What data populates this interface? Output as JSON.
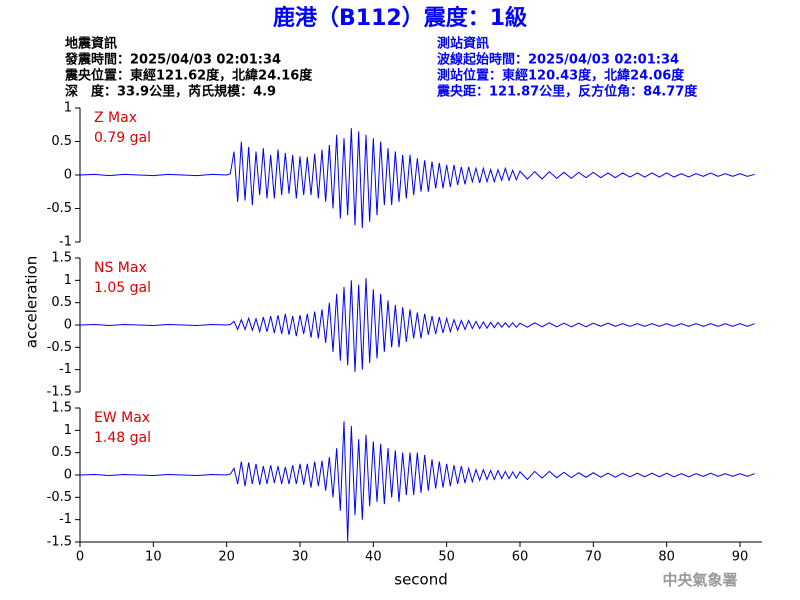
{
  "header": {
    "title": "鹿港（B112）震度：1級",
    "left": [
      "地震資訊",
      "發震時間：2025/04/03 02:01:34",
      "震央位置：東經121.62度，北緯24.16度",
      "深　度：33.9公里，芮氏規模：4.9"
    ],
    "right": [
      "測站資訊",
      "波線起始時間：2025/04/03 02:01:34",
      "測站位置：東經120.43度，北緯24.06度",
      "震央距：121.87公里，反方位角：84.77度"
    ]
  },
  "footer": {
    "agency": "中央氣象署"
  },
  "chart_data": {
    "type": "line",
    "xlabel": "second",
    "ylabel": "acceleration",
    "color": "#0000ff",
    "xlim": [
      0,
      93
    ],
    "xticks": [
      0,
      10,
      20,
      30,
      40,
      50,
      60,
      70,
      80,
      90
    ],
    "x": [
      0,
      2,
      4,
      6,
      8,
      10,
      12,
      14,
      16,
      18,
      20,
      20.5,
      21,
      21.5,
      22,
      22.5,
      23,
      23.5,
      24,
      24.5,
      25,
      25.5,
      26,
      26.5,
      27,
      27.5,
      28,
      28.5,
      29,
      29.5,
      30,
      30.5,
      31,
      31.5,
      32,
      32.5,
      33,
      33.5,
      34,
      34.5,
      35,
      35.5,
      36,
      36.5,
      37,
      37.5,
      38,
      38.5,
      39,
      39.5,
      40,
      40.5,
      41,
      41.5,
      42,
      42.5,
      43,
      43.5,
      44,
      44.5,
      45,
      45.5,
      46,
      46.5,
      47,
      47.5,
      48,
      48.5,
      49,
      49.5,
      50,
      50.5,
      51,
      51.5,
      52,
      52.5,
      53,
      53.5,
      54,
      54.5,
      55,
      55.5,
      56,
      56.5,
      57,
      57.5,
      58,
      58.5,
      59,
      59.5,
      60,
      61,
      62,
      63,
      64,
      65,
      66,
      67,
      68,
      69,
      70,
      71,
      72,
      73,
      74,
      75,
      76,
      77,
      78,
      79,
      80,
      81,
      82,
      83,
      84,
      85,
      86,
      87,
      88,
      89,
      90,
      91,
      92
    ],
    "panels": [
      {
        "label": "Z Max",
        "max": "0.79 gal",
        "ylim": [
          -1,
          1
        ],
        "yticks": [
          -1,
          -0.5,
          0,
          0.5,
          1
        ],
        "values": [
          0,
          0.01,
          -0.01,
          0.01,
          0,
          -0.01,
          0.01,
          0,
          -0.01,
          0.01,
          0,
          0.02,
          0.35,
          -0.4,
          0.5,
          -0.38,
          0.42,
          -0.45,
          0.35,
          -0.3,
          0.4,
          -0.35,
          0.3,
          -0.35,
          0.38,
          -0.3,
          0.33,
          -0.28,
          0.3,
          -0.35,
          0.28,
          -0.3,
          0.27,
          -0.3,
          0.32,
          -0.35,
          0.38,
          -0.4,
          0.45,
          -0.5,
          0.6,
          -0.65,
          0.55,
          -0.6,
          0.7,
          -0.75,
          0.65,
          -0.79,
          0.6,
          -0.7,
          0.55,
          -0.6,
          0.5,
          -0.45,
          0.4,
          -0.45,
          0.35,
          -0.4,
          0.3,
          -0.35,
          0.3,
          -0.3,
          0.25,
          -0.25,
          0.22,
          -0.25,
          0.2,
          -0.2,
          0.18,
          -0.2,
          0.15,
          -0.18,
          0.15,
          -0.15,
          0.12,
          -0.14,
          0.12,
          -0.1,
          0.1,
          -0.12,
          0.1,
          -0.1,
          0.08,
          -0.1,
          0.08,
          -0.08,
          0.1,
          -0.08,
          0.07,
          -0.07,
          0.06,
          -0.06,
          0.05,
          -0.06,
          0.05,
          -0.05,
          0.04,
          -0.05,
          0.04,
          -0.04,
          0.04,
          -0.04,
          0.03,
          -0.04,
          0.03,
          -0.03,
          0.03,
          -0.03,
          0.03,
          -0.03,
          0.03,
          -0.03,
          0.02,
          -0.03,
          0.02,
          -0.02,
          0.03,
          -0.02,
          0.02,
          -0.02,
          0.02,
          -0.02,
          0.01
        ]
      },
      {
        "label": "NS Max",
        "max": "1.05 gal",
        "ylim": [
          -1.5,
          1.5
        ],
        "yticks": [
          -1.5,
          -1,
          -0.5,
          0,
          0.5,
          1,
          1.5
        ],
        "values": [
          0,
          0.01,
          -0.01,
          0.01,
          0,
          -0.01,
          0.01,
          0,
          -0.01,
          0.01,
          0,
          0.01,
          0.08,
          -0.1,
          0.12,
          -0.1,
          0.15,
          -0.12,
          0.14,
          -0.15,
          0.18,
          -0.15,
          0.2,
          -0.18,
          0.22,
          -0.2,
          0.25,
          -0.22,
          0.2,
          -0.25,
          0.22,
          -0.2,
          0.25,
          -0.28,
          0.3,
          -0.3,
          0.35,
          -0.4,
          0.5,
          -0.6,
          0.7,
          -0.8,
          0.85,
          -0.9,
          1.0,
          -1.05,
          0.9,
          -1.0,
          1.05,
          -0.85,
          0.8,
          -0.75,
          0.7,
          -0.6,
          0.55,
          -0.5,
          0.45,
          -0.5,
          0.4,
          -0.38,
          0.35,
          -0.3,
          0.28,
          -0.3,
          0.25,
          -0.22,
          0.2,
          -0.2,
          0.18,
          -0.18,
          0.15,
          -0.15,
          0.12,
          -0.12,
          0.1,
          -0.1,
          0.1,
          -0.08,
          0.08,
          -0.08,
          0.07,
          -0.07,
          0.06,
          -0.06,
          0.06,
          -0.05,
          0.05,
          -0.05,
          0.05,
          -0.05,
          0.04,
          -0.05,
          0.05,
          -0.04,
          0.05,
          -0.04,
          0.04,
          -0.04,
          0.04,
          -0.04,
          0.04,
          -0.03,
          0.04,
          -0.03,
          0.03,
          -0.03,
          0.03,
          -0.03,
          0.03,
          -0.03,
          0.03,
          -0.03,
          0.03,
          -0.03,
          0.03,
          -0.03,
          0.03,
          -0.03,
          0.03,
          -0.03,
          0.03,
          -0.03,
          0.03
        ]
      },
      {
        "label": "EW Max",
        "max": "1.48 gal",
        "ylim": [
          -1.5,
          1.5
        ],
        "yticks": [
          -1.5,
          -1,
          -0.5,
          0,
          0.5,
          1,
          1.5
        ],
        "values": [
          0,
          0.01,
          -0.01,
          0.01,
          0,
          -0.01,
          0.01,
          0,
          -0.01,
          0.01,
          0,
          0.02,
          0.15,
          -0.2,
          0.3,
          -0.25,
          0.28,
          -0.2,
          0.25,
          -0.22,
          0.2,
          -0.2,
          0.22,
          -0.18,
          0.2,
          -0.2,
          0.18,
          -0.2,
          0.22,
          -0.2,
          0.25,
          -0.22,
          0.25,
          -0.28,
          0.3,
          -0.25,
          0.32,
          -0.35,
          0.4,
          -0.5,
          0.6,
          -0.8,
          1.2,
          -1.48,
          1.1,
          -0.9,
          0.8,
          -1.0,
          0.9,
          -0.7,
          0.75,
          -0.6,
          0.7,
          -0.65,
          0.6,
          -0.5,
          0.55,
          -0.6,
          0.5,
          -0.45,
          0.5,
          -0.45,
          0.5,
          -0.4,
          0.45,
          -0.35,
          0.35,
          -0.3,
          0.3,
          -0.28,
          0.25,
          -0.25,
          0.22,
          -0.2,
          0.2,
          -0.18,
          0.15,
          -0.15,
          0.12,
          -0.12,
          0.12,
          -0.1,
          0.1,
          -0.1,
          0.1,
          -0.08,
          0.08,
          -0.08,
          0.07,
          -0.07,
          0.07,
          -0.1,
          0.08,
          -0.07,
          0.08,
          -0.06,
          0.06,
          -0.06,
          0.05,
          -0.05,
          0.05,
          -0.05,
          0.04,
          -0.05,
          0.04,
          -0.04,
          0.04,
          -0.04,
          0.04,
          -0.04,
          0.04,
          -0.04,
          0.03,
          -0.04,
          0.03,
          -0.03,
          0.04,
          -0.03,
          0.03,
          -0.03,
          0.03,
          -0.03,
          0.03
        ]
      }
    ]
  }
}
